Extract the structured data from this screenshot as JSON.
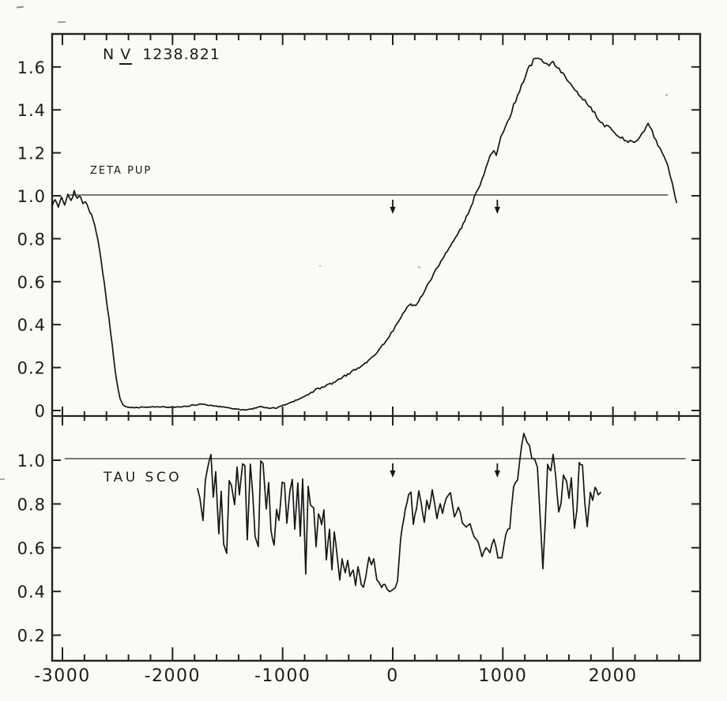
{
  "figure": {
    "line_id": {
      "element": "N",
      "ion_numeral": "V",
      "wavelength": "1238.821"
    },
    "colors": {
      "ink": "#161616",
      "paper": "#fafaf7",
      "continuum": "#4d4d4d",
      "frame": "#222222"
    }
  },
  "chart_data": {
    "type": "line",
    "title": "N V 1238.821",
    "x_axis": {
      "major_ticks": [
        -3000,
        -2000,
        -1000,
        0,
        1000,
        2000
      ],
      "major_tick_labels": [
        "-3000",
        "-2000",
        "-1000",
        "0",
        "1000",
        "2000"
      ],
      "minor_tick_step": 200,
      "range": [
        -3095,
        2790
      ],
      "grid": false
    },
    "panels": [
      {
        "name": "ZETA PUP",
        "y_ticks": [
          1.6,
          1.4,
          1.2,
          1.0,
          0.8,
          0.6,
          0.4,
          0.2,
          0
        ],
        "y_tick_labels": [
          "1.6",
          "1.4",
          "1.2",
          "1.0",
          "0.8",
          "0.6",
          "0.4",
          "0.2",
          "0"
        ],
        "y_range": [
          -0.026,
          1.754
        ],
        "continuum_level": 1.0,
        "continuum_span_kms": [
          -2940,
          2500
        ],
        "marker_arrows_kms": [
          0,
          950
        ],
        "points": [
          [
            -3095,
            0.95
          ],
          [
            -3066,
            0.985
          ],
          [
            -3037,
            0.95
          ],
          [
            -3008,
            1.0
          ],
          [
            -2980,
            0.96
          ],
          [
            -2951,
            1.01
          ],
          [
            -2922,
            0.975
          ],
          [
            -2893,
            1.02
          ],
          [
            -2865,
            0.985
          ],
          [
            -2836,
            1.0
          ],
          [
            -2814,
            0.96
          ],
          [
            -2793,
            0.975
          ],
          [
            -2764,
            0.94
          ],
          [
            -2735,
            0.91
          ],
          [
            -2707,
            0.865
          ],
          [
            -2678,
            0.79
          ],
          [
            -2649,
            0.7
          ],
          [
            -2620,
            0.59
          ],
          [
            -2592,
            0.48
          ],
          [
            -2563,
            0.37
          ],
          [
            -2534,
            0.24
          ],
          [
            -2506,
            0.13
          ],
          [
            -2477,
            0.055
          ],
          [
            -2448,
            0.025
          ],
          [
            -2405,
            0.015
          ],
          [
            -2348,
            0.012
          ],
          [
            -2276,
            0.015
          ],
          [
            -2132,
            0.018
          ],
          [
            -1989,
            0.015
          ],
          [
            -1845,
            0.022
          ],
          [
            -1737,
            0.03
          ],
          [
            -1630,
            0.022
          ],
          [
            -1522,
            0.015
          ],
          [
            -1414,
            0.005
          ],
          [
            -1343,
            0.002
          ],
          [
            -1271,
            0.008
          ],
          [
            -1199,
            0.018
          ],
          [
            -1127,
            0.012
          ],
          [
            -1055,
            0.012
          ],
          [
            -983,
            0.026
          ],
          [
            -912,
            0.04
          ],
          [
            -840,
            0.055
          ],
          [
            -768,
            0.074
          ],
          [
            -696,
            0.096
          ],
          [
            -625,
            0.11
          ],
          [
            -553,
            0.125
          ],
          [
            -481,
            0.147
          ],
          [
            -409,
            0.169
          ],
          [
            -337,
            0.19
          ],
          [
            -266,
            0.213
          ],
          [
            -208,
            0.24
          ],
          [
            -158,
            0.265
          ],
          [
            -108,
            0.294
          ],
          [
            -65,
            0.32
          ],
          [
            -14,
            0.36
          ],
          [
            22,
            0.39
          ],
          [
            57,
            0.42
          ],
          [
            93,
            0.456
          ],
          [
            129,
            0.478
          ],
          [
            165,
            0.493
          ],
          [
            208,
            0.485
          ],
          [
            237,
            0.51
          ],
          [
            280,
            0.55
          ],
          [
            323,
            0.588
          ],
          [
            366,
            0.63
          ],
          [
            409,
            0.67
          ],
          [
            452,
            0.706
          ],
          [
            495,
            0.74
          ],
          [
            538,
            0.78
          ],
          [
            582,
            0.816
          ],
          [
            625,
            0.853
          ],
          [
            668,
            0.9
          ],
          [
            711,
            0.95
          ],
          [
            740,
            0.99
          ],
          [
            775,
            1.03
          ],
          [
            811,
            1.07
          ],
          [
            847,
            1.125
          ],
          [
            883,
            1.18
          ],
          [
            919,
            1.21
          ],
          [
            940,
            1.19
          ],
          [
            969,
            1.25
          ],
          [
            998,
            1.29
          ],
          [
            1027,
            1.33
          ],
          [
            1063,
            1.37
          ],
          [
            1098,
            1.42
          ],
          [
            1134,
            1.47
          ],
          [
            1170,
            1.515
          ],
          [
            1206,
            1.56
          ],
          [
            1242,
            1.6
          ],
          [
            1278,
            1.63
          ],
          [
            1314,
            1.645
          ],
          [
            1350,
            1.63
          ],
          [
            1386,
            1.62
          ],
          [
            1421,
            1.61
          ],
          [
            1457,
            1.62
          ],
          [
            1493,
            1.595
          ],
          [
            1529,
            1.58
          ],
          [
            1565,
            1.56
          ],
          [
            1601,
            1.53
          ],
          [
            1637,
            1.5
          ],
          [
            1673,
            1.48
          ],
          [
            1709,
            1.455
          ],
          [
            1745,
            1.44
          ],
          [
            1780,
            1.42
          ],
          [
            1816,
            1.4
          ],
          [
            1852,
            1.37
          ],
          [
            1888,
            1.35
          ],
          [
            1924,
            1.33
          ],
          [
            1960,
            1.316
          ],
          [
            1996,
            1.3
          ],
          [
            2032,
            1.287
          ],
          [
            2068,
            1.27
          ],
          [
            2104,
            1.263
          ],
          [
            2139,
            1.257
          ],
          [
            2175,
            1.25
          ],
          [
            2211,
            1.257
          ],
          [
            2247,
            1.28
          ],
          [
            2283,
            1.295
          ],
          [
            2319,
            1.33
          ],
          [
            2355,
            1.3
          ],
          [
            2391,
            1.26
          ],
          [
            2427,
            1.22
          ],
          [
            2463,
            1.18
          ],
          [
            2498,
            1.14
          ],
          [
            2520,
            1.1
          ],
          [
            2541,
            1.05
          ],
          [
            2563,
            1.0
          ],
          [
            2577,
            0.97
          ]
        ]
      },
      {
        "name": "TAU SCO",
        "y_ticks": [
          1.0,
          0.8,
          0.6,
          0.4,
          0.2
        ],
        "y_tick_labels": [
          "1.0",
          "0.8",
          "0.6",
          "0.4",
          "0.2"
        ],
        "y_range": [
          0.08,
          1.2
        ],
        "continuum_level": 1.0,
        "continuum_span_kms": [
          -2980,
          2660
        ],
        "marker_arrows_kms": [
          0,
          950
        ],
        "points": [
          [
            -1773,
            0.87
          ],
          [
            -1752,
            0.83
          ],
          [
            -1723,
            0.72
          ],
          [
            -1702,
            0.91
          ],
          [
            -1680,
            0.97
          ],
          [
            -1651,
            1.03
          ],
          [
            -1630,
            0.83
          ],
          [
            -1608,
            0.95
          ],
          [
            -1580,
            0.66
          ],
          [
            -1558,
            0.855
          ],
          [
            -1536,
            0.62
          ],
          [
            -1508,
            0.58
          ],
          [
            -1486,
            0.9
          ],
          [
            -1465,
            0.89
          ],
          [
            -1436,
            0.8
          ],
          [
            -1414,
            0.97
          ],
          [
            -1393,
            0.84
          ],
          [
            -1364,
            0.985
          ],
          [
            -1343,
            0.975
          ],
          [
            -1321,
            0.635
          ],
          [
            -1293,
            0.985
          ],
          [
            -1271,
            0.84
          ],
          [
            -1250,
            0.645
          ],
          [
            -1221,
            0.61
          ],
          [
            -1199,
            1.0
          ],
          [
            -1178,
            0.99
          ],
          [
            -1149,
            0.77
          ],
          [
            -1127,
            0.895
          ],
          [
            -1106,
            0.68
          ],
          [
            -1077,
            0.61
          ],
          [
            -1055,
            0.78
          ],
          [
            -1034,
            0.72
          ],
          [
            -1005,
            0.895
          ],
          [
            -983,
            0.9
          ],
          [
            -962,
            0.71
          ],
          [
            -933,
            0.865
          ],
          [
            -912,
            0.91
          ],
          [
            -890,
            0.68
          ],
          [
            -862,
            0.89
          ],
          [
            -840,
            0.66
          ],
          [
            -818,
            0.91
          ],
          [
            -790,
            0.48
          ],
          [
            -768,
            0.88
          ],
          [
            -747,
            0.8
          ],
          [
            -718,
            0.78
          ],
          [
            -696,
            0.61
          ],
          [
            -675,
            0.755
          ],
          [
            -646,
            0.71
          ],
          [
            -625,
            0.77
          ],
          [
            -603,
            0.55
          ],
          [
            -574,
            0.68
          ],
          [
            -553,
            0.5
          ],
          [
            -531,
            0.67
          ],
          [
            -503,
            0.56
          ],
          [
            -481,
            0.455
          ],
          [
            -460,
            0.55
          ],
          [
            -431,
            0.49
          ],
          [
            -409,
            0.54
          ],
          [
            -388,
            0.465
          ],
          [
            -359,
            0.5
          ],
          [
            -337,
            0.43
          ],
          [
            -316,
            0.51
          ],
          [
            -287,
            0.44
          ],
          [
            -266,
            0.42
          ],
          [
            -244,
            0.465
          ],
          [
            -215,
            0.56
          ],
          [
            -194,
            0.52
          ],
          [
            -172,
            0.55
          ],
          [
            -144,
            0.455
          ],
          [
            -122,
            0.44
          ],
          [
            -101,
            0.42
          ],
          [
            -72,
            0.43
          ],
          [
            -50,
            0.405
          ],
          [
            -29,
            0.4
          ],
          [
            0,
            0.41
          ],
          [
            22,
            0.42
          ],
          [
            43,
            0.44
          ],
          [
            72,
            0.645
          ],
          [
            115,
            0.78
          ],
          [
            144,
            0.84
          ],
          [
            165,
            0.85
          ],
          [
            187,
            0.71
          ],
          [
            215,
            0.78
          ],
          [
            237,
            0.86
          ],
          [
            258,
            0.8
          ],
          [
            287,
            0.72
          ],
          [
            309,
            0.82
          ],
          [
            330,
            0.78
          ],
          [
            359,
            0.86
          ],
          [
            380,
            0.8
          ],
          [
            402,
            0.74
          ],
          [
            431,
            0.8
          ],
          [
            452,
            0.755
          ],
          [
            488,
            0.83
          ],
          [
            524,
            0.855
          ],
          [
            560,
            0.745
          ],
          [
            596,
            0.79
          ],
          [
            632,
            0.72
          ],
          [
            668,
            0.695
          ],
          [
            703,
            0.71
          ],
          [
            740,
            0.645
          ],
          [
            775,
            0.62
          ],
          [
            811,
            0.56
          ],
          [
            847,
            0.6
          ],
          [
            883,
            0.57
          ],
          [
            919,
            0.645
          ],
          [
            955,
            0.555
          ],
          [
            991,
            0.55
          ],
          [
            1027,
            0.665
          ],
          [
            1063,
            0.695
          ],
          [
            1098,
            0.88
          ],
          [
            1134,
            0.91
          ],
          [
            1170,
            1.06
          ],
          [
            1191,
            1.12
          ],
          [
            1220,
            1.08
          ],
          [
            1242,
            1.07
          ],
          [
            1263,
            1.01
          ],
          [
            1292,
            1.0
          ],
          [
            1314,
            0.97
          ],
          [
            1335,
            0.78
          ],
          [
            1364,
            0.51
          ],
          [
            1386,
            0.72
          ],
          [
            1407,
            0.985
          ],
          [
            1436,
            0.95
          ],
          [
            1457,
            1.02
          ],
          [
            1479,
            0.93
          ],
          [
            1508,
            0.765
          ],
          [
            1529,
            0.81
          ],
          [
            1550,
            0.935
          ],
          [
            1579,
            0.905
          ],
          [
            1601,
            0.83
          ],
          [
            1622,
            0.92
          ],
          [
            1651,
            0.685
          ],
          [
            1673,
            0.78
          ],
          [
            1694,
            0.985
          ],
          [
            1723,
            0.975
          ],
          [
            1745,
            0.8
          ],
          [
            1766,
            0.695
          ],
          [
            1795,
            0.855
          ],
          [
            1816,
            0.82
          ],
          [
            1838,
            0.88
          ],
          [
            1866,
            0.84
          ],
          [
            1888,
            0.855
          ]
        ]
      }
    ]
  }
}
